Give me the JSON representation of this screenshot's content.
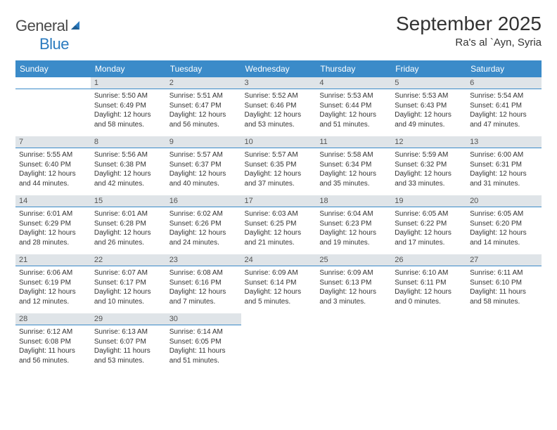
{
  "logo": {
    "word1": "General",
    "word2": "Blue"
  },
  "title": "September 2025",
  "location": "Ra's al `Ayn, Syria",
  "colors": {
    "header_bg": "#3b8bc9",
    "header_fg": "#ffffff",
    "daynum_bg": "#dfe4e8",
    "rule": "#3b8bc9",
    "logo_gray": "#4a4a4a",
    "logo_blue": "#2b7bbf",
    "text": "#333333"
  },
  "weekdays": [
    "Sunday",
    "Monday",
    "Tuesday",
    "Wednesday",
    "Thursday",
    "Friday",
    "Saturday"
  ],
  "grid": {
    "cols": 7,
    "rows": 5,
    "start_offset": 1,
    "days_in_month": 30
  },
  "days": {
    "1": {
      "sunrise": "5:50 AM",
      "sunset": "6:49 PM",
      "daylight": "12 hours and 58 minutes."
    },
    "2": {
      "sunrise": "5:51 AM",
      "sunset": "6:47 PM",
      "daylight": "12 hours and 56 minutes."
    },
    "3": {
      "sunrise": "5:52 AM",
      "sunset": "6:46 PM",
      "daylight": "12 hours and 53 minutes."
    },
    "4": {
      "sunrise": "5:53 AM",
      "sunset": "6:44 PM",
      "daylight": "12 hours and 51 minutes."
    },
    "5": {
      "sunrise": "5:53 AM",
      "sunset": "6:43 PM",
      "daylight": "12 hours and 49 minutes."
    },
    "6": {
      "sunrise": "5:54 AM",
      "sunset": "6:41 PM",
      "daylight": "12 hours and 47 minutes."
    },
    "7": {
      "sunrise": "5:55 AM",
      "sunset": "6:40 PM",
      "daylight": "12 hours and 44 minutes."
    },
    "8": {
      "sunrise": "5:56 AM",
      "sunset": "6:38 PM",
      "daylight": "12 hours and 42 minutes."
    },
    "9": {
      "sunrise": "5:57 AM",
      "sunset": "6:37 PM",
      "daylight": "12 hours and 40 minutes."
    },
    "10": {
      "sunrise": "5:57 AM",
      "sunset": "6:35 PM",
      "daylight": "12 hours and 37 minutes."
    },
    "11": {
      "sunrise": "5:58 AM",
      "sunset": "6:34 PM",
      "daylight": "12 hours and 35 minutes."
    },
    "12": {
      "sunrise": "5:59 AM",
      "sunset": "6:32 PM",
      "daylight": "12 hours and 33 minutes."
    },
    "13": {
      "sunrise": "6:00 AM",
      "sunset": "6:31 PM",
      "daylight": "12 hours and 31 minutes."
    },
    "14": {
      "sunrise": "6:01 AM",
      "sunset": "6:29 PM",
      "daylight": "12 hours and 28 minutes."
    },
    "15": {
      "sunrise": "6:01 AM",
      "sunset": "6:28 PM",
      "daylight": "12 hours and 26 minutes."
    },
    "16": {
      "sunrise": "6:02 AM",
      "sunset": "6:26 PM",
      "daylight": "12 hours and 24 minutes."
    },
    "17": {
      "sunrise": "6:03 AM",
      "sunset": "6:25 PM",
      "daylight": "12 hours and 21 minutes."
    },
    "18": {
      "sunrise": "6:04 AM",
      "sunset": "6:23 PM",
      "daylight": "12 hours and 19 minutes."
    },
    "19": {
      "sunrise": "6:05 AM",
      "sunset": "6:22 PM",
      "daylight": "12 hours and 17 minutes."
    },
    "20": {
      "sunrise": "6:05 AM",
      "sunset": "6:20 PM",
      "daylight": "12 hours and 14 minutes."
    },
    "21": {
      "sunrise": "6:06 AM",
      "sunset": "6:19 PM",
      "daylight": "12 hours and 12 minutes."
    },
    "22": {
      "sunrise": "6:07 AM",
      "sunset": "6:17 PM",
      "daylight": "12 hours and 10 minutes."
    },
    "23": {
      "sunrise": "6:08 AM",
      "sunset": "6:16 PM",
      "daylight": "12 hours and 7 minutes."
    },
    "24": {
      "sunrise": "6:09 AM",
      "sunset": "6:14 PM",
      "daylight": "12 hours and 5 minutes."
    },
    "25": {
      "sunrise": "6:09 AM",
      "sunset": "6:13 PM",
      "daylight": "12 hours and 3 minutes."
    },
    "26": {
      "sunrise": "6:10 AM",
      "sunset": "6:11 PM",
      "daylight": "12 hours and 0 minutes."
    },
    "27": {
      "sunrise": "6:11 AM",
      "sunset": "6:10 PM",
      "daylight": "11 hours and 58 minutes."
    },
    "28": {
      "sunrise": "6:12 AM",
      "sunset": "6:08 PM",
      "daylight": "11 hours and 56 minutes."
    },
    "29": {
      "sunrise": "6:13 AM",
      "sunset": "6:07 PM",
      "daylight": "11 hours and 53 minutes."
    },
    "30": {
      "sunrise": "6:14 AM",
      "sunset": "6:05 PM",
      "daylight": "11 hours and 51 minutes."
    }
  },
  "labels": {
    "sunrise_prefix": "Sunrise: ",
    "sunset_prefix": "Sunset: ",
    "daylight_prefix": "Daylight: "
  }
}
